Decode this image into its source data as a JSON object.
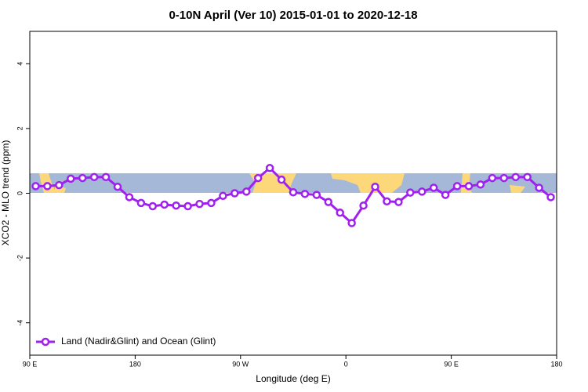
{
  "chart_data": {
    "type": "line",
    "title": "0-10N April (Ver 10)   2015-01-01 to 2020-12-18",
    "x_label": "Longitude (deg E)",
    "y_label": "XCO2 - MLO trend (ppm)",
    "x": [
      95,
      105,
      115,
      125,
      135,
      145,
      155,
      165,
      175,
      185,
      195,
      205,
      215,
      225,
      235,
      245,
      255,
      265,
      275,
      285,
      295,
      305,
      315,
      325,
      335,
      345,
      355,
      365,
      375,
      385,
      395,
      405,
      415,
      425,
      435,
      445,
      455,
      465,
      475,
      485,
      495,
      505,
      515,
      525,
      535
    ],
    "series": [
      {
        "name": "Land (Nadir&Glint) and Ocean (Glint)",
        "color": "#a020f0",
        "values": [
          0.22,
          0.22,
          0.25,
          0.45,
          0.47,
          0.5,
          0.5,
          0.2,
          -0.12,
          -0.3,
          -0.4,
          -0.35,
          -0.38,
          -0.4,
          -0.33,
          -0.3,
          -0.08,
          0.0,
          0.05,
          0.47,
          0.78,
          0.42,
          0.03,
          -0.02,
          -0.05,
          -0.27,
          -0.6,
          -0.92,
          -0.38,
          0.2,
          -0.25,
          -0.27,
          0.02,
          0.05,
          0.17,
          -0.05,
          0.22,
          0.22,
          0.27,
          0.47,
          0.47,
          0.5,
          0.5,
          0.17,
          -0.12
        ]
      }
    ],
    "xlim": [
      90,
      540
    ],
    "xticks": [
      {
        "value": 90,
        "label": "90 E"
      },
      {
        "value": 180,
        "label": "180"
      },
      {
        "value": 270,
        "label": "90 W"
      },
      {
        "value": 360,
        "label": "0"
      },
      {
        "value": 450,
        "label": "90 E"
      },
      {
        "value": 540,
        "label": "180"
      }
    ],
    "ylim": [
      -5,
      5
    ],
    "yticks": [
      -4,
      -2,
      0,
      2,
      4
    ],
    "legend": "bottom-left"
  }
}
